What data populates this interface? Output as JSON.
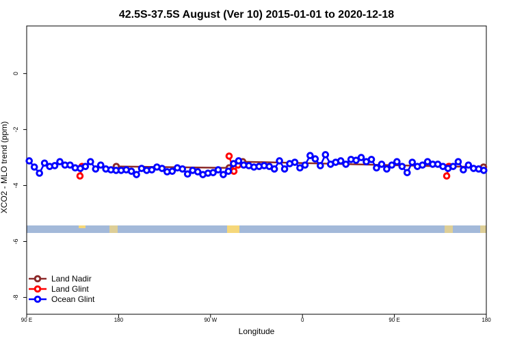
{
  "chart_data": {
    "type": "line",
    "title": "42.5S-37.5S August (Ver 10)   2015-01-01 to 2020-12-18",
    "x_label": "Longitude",
    "y_label": "XCO2 - MLO trend (ppm)",
    "xlim": [
      90,
      540
    ],
    "ylim": [
      -8.6,
      1.7
    ],
    "xticks": [
      {
        "value": 90,
        "label": "90 E"
      },
      180,
      {
        "value": 270,
        "label": "90 W"
      },
      {
        "value": 360,
        "label": "0"
      },
      {
        "value": 450,
        "label": "90 E"
      },
      {
        "value": 540,
        "label": "180"
      }
    ],
    "yticks": [
      0,
      -2,
      -4,
      -6,
      -8
    ],
    "legend": "bottom-left",
    "series": [
      {
        "name": "Land Nadir",
        "color": "#8b2a2a",
        "x": [
          177.7,
          288.2,
          301.6,
          503.8,
          537.3
        ],
        "values": [
          -3.32,
          -3.37,
          -3.15,
          -3.32,
          -3.34
        ]
      },
      {
        "name": "Land Glint",
        "color": "#ff0000",
        "x": [
          142.2,
          144.2,
          200,
          288.2,
          292.9,
          296.9,
          400,
          501.2,
          503.2
        ],
        "values": [
          -3.66,
          -3.32,
          null,
          -2.95,
          -3.49,
          -3.27,
          null,
          -3.66,
          -3.32
        ]
      },
      {
        "name": "Ocean Glint",
        "color": "#0000ff",
        "x": [
          92.5,
          97.5,
          102.5,
          107.5,
          112.5,
          117.5,
          122.5,
          127.5,
          132.5,
          137.5,
          142.5,
          147.5,
          152.5,
          157.5,
          162.5,
          167.5,
          172.5,
          177.5,
          182.5,
          187.5,
          192.5,
          197.5,
          202.5,
          207.5,
          212.5,
          217.5,
          222.5,
          227.5,
          232.5,
          237.5,
          242.5,
          247.5,
          252.5,
          257.5,
          262.5,
          267.5,
          272.5,
          277.5,
          282.5,
          287.5,
          292.5,
          297.5,
          302.5,
          307.5,
          312.5,
          317.5,
          322.5,
          327.5,
          332.5,
          337.5,
          342.5,
          347.5,
          352.5,
          357.5,
          362.5,
          367.5,
          372.5,
          377.5,
          382.5,
          387.5,
          392.5,
          397.5,
          402.5,
          407.5,
          412.5,
          417.5,
          422.5,
          427.5,
          432.5,
          437.5,
          442.5,
          447.5,
          452.5,
          457.5,
          462.5,
          467.5,
          472.5,
          477.5,
          482.5,
          487.5,
          492.5,
          497.5,
          502.5,
          507.5,
          512.5,
          517.5,
          522.5,
          527.5,
          532.5,
          537.5
        ],
        "values": [
          -3.12,
          -3.34,
          -3.56,
          -3.2,
          -3.32,
          -3.29,
          -3.15,
          -3.27,
          -3.27,
          -3.37,
          -3.39,
          -3.32,
          -3.15,
          -3.41,
          -3.27,
          -3.41,
          -3.44,
          -3.46,
          -3.46,
          -3.44,
          -3.49,
          -3.61,
          -3.39,
          -3.46,
          -3.44,
          -3.34,
          -3.39,
          -3.51,
          -3.49,
          -3.37,
          -3.41,
          -3.59,
          -3.46,
          -3.51,
          -3.61,
          -3.56,
          -3.54,
          -3.44,
          -3.61,
          -3.49,
          -3.22,
          -3.12,
          -3.27,
          -3.29,
          -3.34,
          -3.32,
          -3.29,
          -3.32,
          -3.41,
          -3.12,
          -3.41,
          -3.22,
          -3.17,
          -3.37,
          -3.27,
          -2.93,
          -3.05,
          -3.29,
          -2.9,
          -3.24,
          -3.17,
          -3.12,
          -3.24,
          -3.07,
          -3.1,
          -3.0,
          -3.15,
          -3.07,
          -3.37,
          -3.24,
          -3.41,
          -3.27,
          -3.15,
          -3.32,
          -3.54,
          -3.17,
          -3.32,
          -3.27,
          -3.15,
          -3.24,
          -3.24,
          -3.32,
          -3.39,
          -3.32,
          -3.15,
          -3.44,
          -3.27,
          -3.39,
          -3.41,
          -3.46
        ]
      }
    ]
  }
}
